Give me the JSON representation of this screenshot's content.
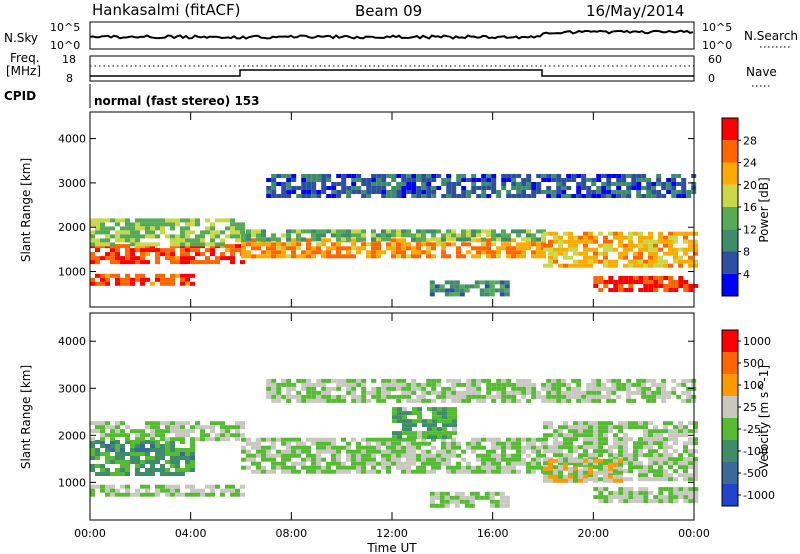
{
  "header": {
    "station": "Hankasalmi (fitACF)",
    "beam": "Beam 09",
    "date": "16/May/2014"
  },
  "strips": {
    "nsky_label": "N.Sky",
    "nsky_ticks": [
      "10^5",
      "10^0"
    ],
    "nsearch_label": "N.Search",
    "nsearch_ticks": [
      "10^5",
      "10^0"
    ],
    "freq_label_line1": "Freq.",
    "freq_label_line2": "[MHz]",
    "freq_ticks": [
      "18",
      "8"
    ],
    "nave_label": "Nave",
    "nave_ticks": [
      "60",
      "0"
    ],
    "cpid_label": "CPID",
    "cpid_text": "normal (fast stereo) 153"
  },
  "x_axis": {
    "label": "Time UT",
    "tick_labels": [
      "00:00",
      "04:00",
      "08:00",
      "12:00",
      "16:00",
      "20:00",
      "00:00"
    ]
  },
  "power_panel": {
    "ylabel": "Slant Range [km]",
    "y_ticks": [
      "4000",
      "3000",
      "2000",
      "1000"
    ],
    "colorbar_label": "Power [dB]",
    "colorbar_ticks": [
      "28",
      "24",
      "20",
      "16",
      "12",
      "8",
      "4"
    ],
    "colors": [
      "#0000ff",
      "#2d4fa0",
      "#3f8c6a",
      "#55aa55",
      "#c8d848",
      "#ffaa00",
      "#ff6600",
      "#ff0000"
    ]
  },
  "velocity_panel": {
    "ylabel": "Slant Range [km]",
    "y_ticks": [
      "4000",
      "3000",
      "2000",
      "1000"
    ],
    "colorbar_label": "Velocity [m s^-1]",
    "colorbar_ticks": [
      "1000",
      "500",
      "100",
      "25",
      "-25",
      "-100",
      "-500",
      "-1000"
    ],
    "colors": [
      "#2244cc",
      "#3b6a9a",
      "#3f8c6a",
      "#55bb33",
      "#c8c8c0",
      "#ff9900",
      "#ff6600",
      "#ff0000"
    ]
  },
  "chart_data": {
    "type": "heatmap",
    "x_unit": "hours UT",
    "x_range": [
      0,
      24
    ],
    "y_unit": "km",
    "y_range": [
      200,
      4600
    ],
    "panels": [
      {
        "name": "Power [dB]",
        "scale": [
          0,
          30
        ],
        "bands": [
          {
            "t0": 0,
            "t1": 6,
            "r0": 1180,
            "r1": 1620,
            "value": 26
          },
          {
            "t0": 0,
            "t1": 6,
            "r0": 1620,
            "r1": 2200,
            "value": 15
          },
          {
            "t0": 0,
            "t1": 4,
            "r0": 700,
            "r1": 950,
            "value": 25
          },
          {
            "t0": 6,
            "t1": 18,
            "r0": 1300,
            "r1": 1750,
            "value": 22
          },
          {
            "t0": 6,
            "t1": 18,
            "r0": 1750,
            "r1": 1950,
            "value": 13
          },
          {
            "t0": 13.5,
            "t1": 16.5,
            "r0": 500,
            "r1": 800,
            "value": 10
          },
          {
            "t0": 18,
            "t1": 24,
            "r0": 1100,
            "r1": 1900,
            "value": 20
          },
          {
            "t0": 20,
            "t1": 24,
            "r0": 600,
            "r1": 900,
            "value": 27
          },
          {
            "t0": 7,
            "t1": 24,
            "r0": 2700,
            "r1": 3200,
            "value": 6
          }
        ]
      },
      {
        "name": "Velocity [m s^-1]",
        "scale": [
          -1000,
          1000
        ],
        "bands": [
          {
            "t0": 0,
            "t1": 4,
            "r0": 1200,
            "r1": 1900,
            "value": -300
          },
          {
            "t0": 0,
            "t1": 6,
            "r0": 1900,
            "r1": 2300,
            "value": 0
          },
          {
            "t0": 0,
            "t1": 6,
            "r0": 700,
            "r1": 950,
            "value": 0
          },
          {
            "t0": 6,
            "t1": 18,
            "r0": 1200,
            "r1": 1950,
            "value": 0
          },
          {
            "t0": 12,
            "t1": 14.5,
            "r0": 2000,
            "r1": 2600,
            "value": -200
          },
          {
            "t0": 13.5,
            "t1": 16.5,
            "r0": 500,
            "r1": 800,
            "value": 0
          },
          {
            "t0": 18,
            "t1": 24,
            "r0": 1100,
            "r1": 2300,
            "value": 0
          },
          {
            "t0": 18,
            "t1": 21,
            "r0": 1000,
            "r1": 1500,
            "value": 150
          },
          {
            "t0": 20,
            "t1": 24,
            "r0": 600,
            "r1": 900,
            "value": 0
          },
          {
            "t0": 7,
            "t1": 24,
            "r0": 2700,
            "r1": 3200,
            "value": 0
          }
        ]
      }
    ]
  }
}
